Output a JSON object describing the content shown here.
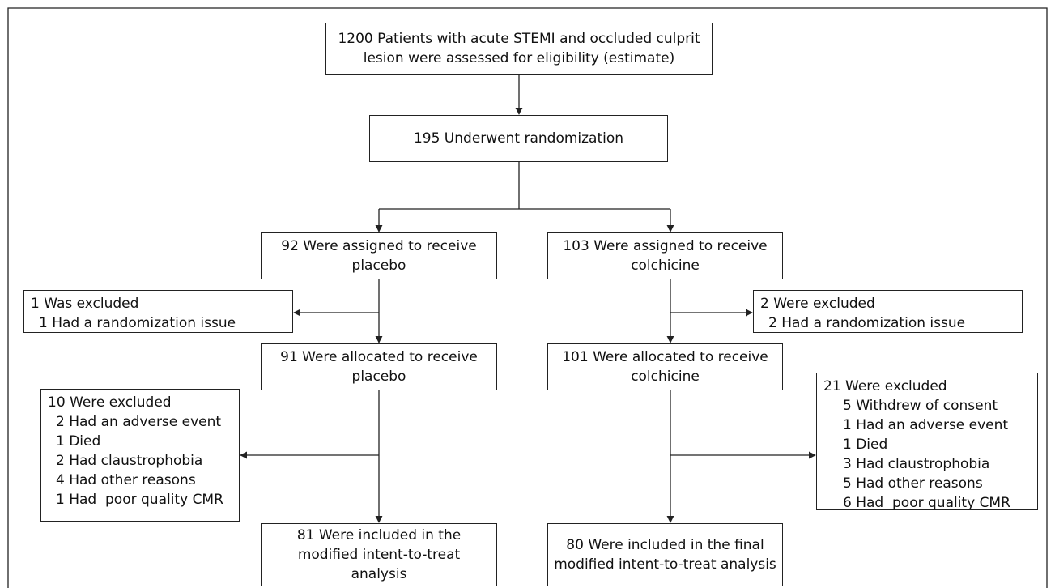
{
  "nodes": [
    {
      "lines": [
        "1200 Patients with acute STEMI and occluded culprit",
        "lesion were assessed for eligibility (estimate)"
      ]
    },
    {
      "lines": [
        "195 Underwent randomization"
      ]
    },
    {
      "lines": [
        "92 Were assigned to receive",
        "placebo"
      ]
    },
    {
      "lines": [
        "103 Were assigned to receive",
        "colchicine"
      ]
    },
    {
      "title": "1 Was excluded",
      "items": [
        "1 Had a randomization issue"
      ]
    },
    {
      "title": "2 Were excluded",
      "items": [
        "2 Had a randomization issue"
      ]
    },
    {
      "lines": [
        "91 Were allocated to receive",
        "placebo"
      ]
    },
    {
      "lines": [
        "101 Were allocated to receive",
        "colchicine"
      ]
    },
    {
      "title": "10 Were excluded",
      "items": [
        "2 Had an adverse event",
        "1 Died",
        "2 Had claustrophobia",
        "4 Had other reasons",
        "1 Had  poor quality CMR"
      ]
    },
    {
      "title": "21 Were excluded",
      "items": [
        "5 Withdrew of consent",
        "1 Had an adverse event",
        "1 Died",
        "3 Had claustrophobia",
        "5 Had other reasons",
        "6 Had  poor quality CMR"
      ]
    },
    {
      "lines": [
        "81 Were included in the",
        "modified intent-to-treat",
        "analysis"
      ]
    },
    {
      "lines": [
        "80 Were included in the final",
        "modified intent-to-treat analysis"
      ]
    }
  ]
}
